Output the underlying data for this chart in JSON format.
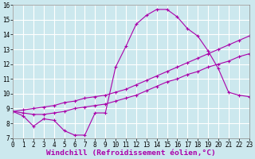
{
  "title": "",
  "xlabel": "Windchill (Refroidissement éolien,°C)",
  "xlim": [
    0,
    23
  ],
  "ylim": [
    7,
    16
  ],
  "yticks": [
    7,
    8,
    9,
    10,
    11,
    12,
    13,
    14,
    15,
    16
  ],
  "xticks": [
    0,
    1,
    2,
    3,
    4,
    5,
    6,
    7,
    8,
    9,
    10,
    11,
    12,
    13,
    14,
    15,
    16,
    17,
    18,
    19,
    20,
    21,
    22,
    23
  ],
  "bg_color": "#cce8ee",
  "grid_color": "#ffffff",
  "line_color": "#aa00aa",
  "line1_y": [
    8.8,
    8.5,
    7.8,
    8.3,
    8.2,
    7.5,
    7.2,
    7.2,
    8.7,
    8.7,
    11.8,
    13.2,
    14.7,
    15.3,
    15.7,
    15.7,
    15.2,
    14.4,
    13.9,
    12.9,
    11.7,
    10.1,
    9.9,
    9.8
  ],
  "line2_y": [
    8.8,
    8.7,
    8.6,
    8.6,
    8.7,
    8.8,
    9.0,
    9.1,
    9.2,
    9.3,
    9.5,
    9.7,
    9.9,
    10.2,
    10.5,
    10.8,
    11.0,
    11.3,
    11.5,
    11.8,
    12.0,
    12.2,
    12.5,
    12.7
  ],
  "line3_y": [
    8.8,
    8.9,
    9.0,
    9.1,
    9.2,
    9.4,
    9.5,
    9.7,
    9.8,
    9.9,
    10.1,
    10.3,
    10.6,
    10.9,
    11.2,
    11.5,
    11.8,
    12.1,
    12.4,
    12.7,
    13.0,
    13.3,
    13.6,
    13.9
  ],
  "markersize": 3,
  "linewidth": 0.8,
  "tick_fontsize": 5.5,
  "xlabel_fontsize": 6.8
}
